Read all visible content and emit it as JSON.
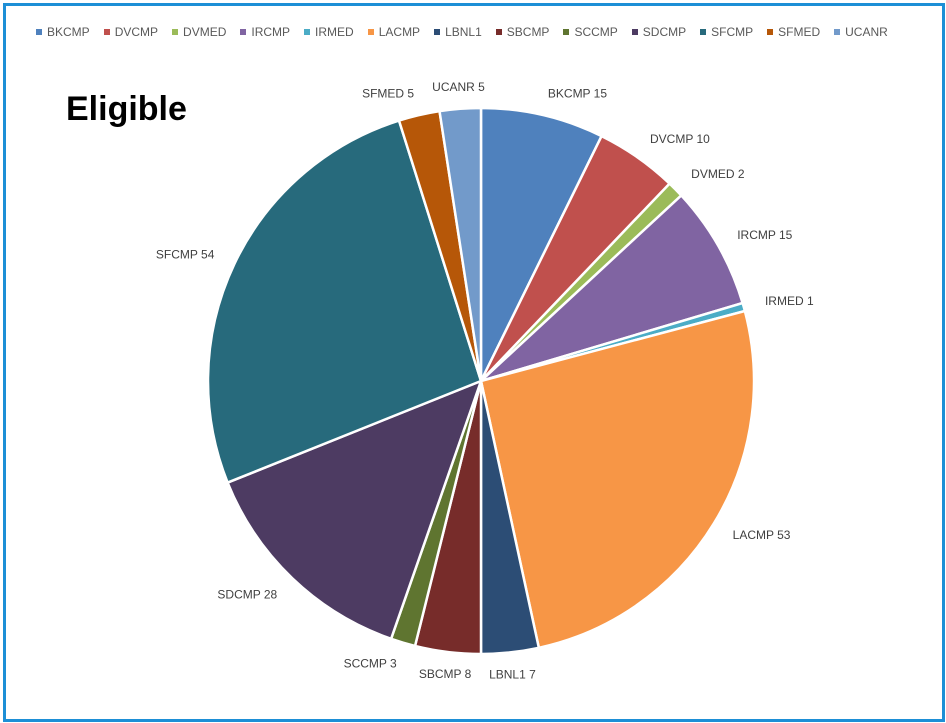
{
  "chart_data": {
    "type": "pie",
    "title": "Eligible",
    "legend_position": "top",
    "series": [
      {
        "name": "BKCMP",
        "value": 15,
        "label": "BKCMP 15",
        "color": "#4f81bd"
      },
      {
        "name": "DVCMP",
        "value": 10,
        "label": "DVCMP 10",
        "color": "#c0504d"
      },
      {
        "name": "DVMED",
        "value": 2,
        "label": "DVMED 2",
        "color": "#9bbb59"
      },
      {
        "name": "IRCMP",
        "value": 15,
        "label": "IRCMP 15",
        "color": "#8064a2"
      },
      {
        "name": "IRMED",
        "value": 1,
        "label": "IRMED 1",
        "color": "#4bacc6"
      },
      {
        "name": "LACMP",
        "value": 53,
        "label": "LACMP 53",
        "color": "#f79646"
      },
      {
        "name": "LBNL1",
        "value": 7,
        "label": "LBNL1 7",
        "color": "#2c4d75"
      },
      {
        "name": "SBCMP",
        "value": 8,
        "label": "SBCMP 8",
        "color": "#772c2a"
      },
      {
        "name": "SCCMP",
        "value": 3,
        "label": "SCCMP 3",
        "color": "#5f7530"
      },
      {
        "name": "SDCMP",
        "value": 28,
        "label": "SDCMP 28",
        "color": "#4d3b62"
      },
      {
        "name": "SFCMP",
        "value": 54,
        "label": "SFCMP 54",
        "color": "#276a7c"
      },
      {
        "name": "SFMED",
        "value": 5,
        "label": "SFMED 5",
        "color": "#b65708"
      },
      {
        "name": "UCANR",
        "value": 5,
        "label": "UCANR 5",
        "color": "#729aca"
      }
    ]
  }
}
